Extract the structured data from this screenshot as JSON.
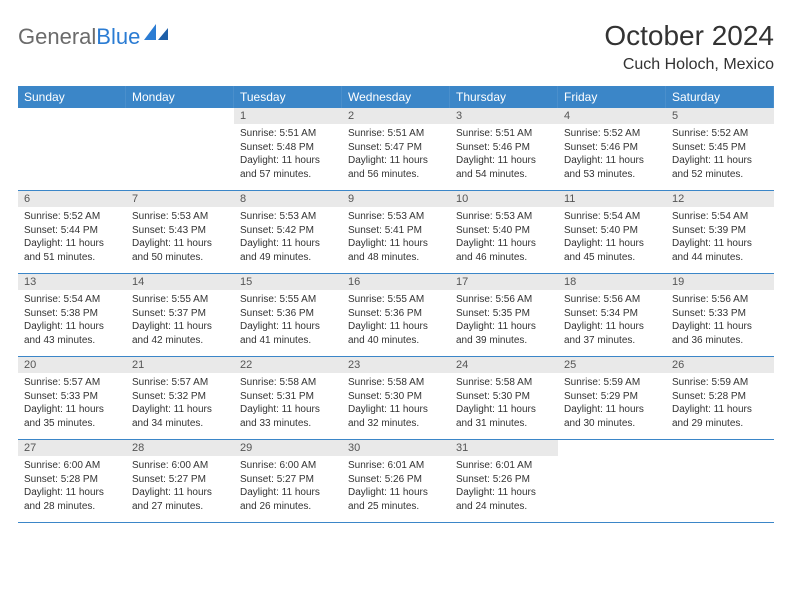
{
  "logo": {
    "text1": "General",
    "text2": "Blue"
  },
  "title": "October 2024",
  "location": "Cuch Holoch, Mexico",
  "colors": {
    "header_bg": "#3b86c8",
    "header_text": "#ffffff",
    "daynum_bg": "#e9e9e9",
    "daynum_text": "#555555",
    "border": "#3b86c8",
    "body_text": "#333333",
    "logo_gray": "#6b6b6b",
    "logo_blue": "#2b7cd3"
  },
  "day_names": [
    "Sunday",
    "Monday",
    "Tuesday",
    "Wednesday",
    "Thursday",
    "Friday",
    "Saturday"
  ],
  "weeks": [
    [
      {
        "empty": true
      },
      {
        "empty": true
      },
      {
        "num": "1",
        "sunrise": "Sunrise: 5:51 AM",
        "sunset": "Sunset: 5:48 PM",
        "d1": "Daylight: 11 hours",
        "d2": "and 57 minutes."
      },
      {
        "num": "2",
        "sunrise": "Sunrise: 5:51 AM",
        "sunset": "Sunset: 5:47 PM",
        "d1": "Daylight: 11 hours",
        "d2": "and 56 minutes."
      },
      {
        "num": "3",
        "sunrise": "Sunrise: 5:51 AM",
        "sunset": "Sunset: 5:46 PM",
        "d1": "Daylight: 11 hours",
        "d2": "and 54 minutes."
      },
      {
        "num": "4",
        "sunrise": "Sunrise: 5:52 AM",
        "sunset": "Sunset: 5:46 PM",
        "d1": "Daylight: 11 hours",
        "d2": "and 53 minutes."
      },
      {
        "num": "5",
        "sunrise": "Sunrise: 5:52 AM",
        "sunset": "Sunset: 5:45 PM",
        "d1": "Daylight: 11 hours",
        "d2": "and 52 minutes."
      }
    ],
    [
      {
        "num": "6",
        "sunrise": "Sunrise: 5:52 AM",
        "sunset": "Sunset: 5:44 PM",
        "d1": "Daylight: 11 hours",
        "d2": "and 51 minutes."
      },
      {
        "num": "7",
        "sunrise": "Sunrise: 5:53 AM",
        "sunset": "Sunset: 5:43 PM",
        "d1": "Daylight: 11 hours",
        "d2": "and 50 minutes."
      },
      {
        "num": "8",
        "sunrise": "Sunrise: 5:53 AM",
        "sunset": "Sunset: 5:42 PM",
        "d1": "Daylight: 11 hours",
        "d2": "and 49 minutes."
      },
      {
        "num": "9",
        "sunrise": "Sunrise: 5:53 AM",
        "sunset": "Sunset: 5:41 PM",
        "d1": "Daylight: 11 hours",
        "d2": "and 48 minutes."
      },
      {
        "num": "10",
        "sunrise": "Sunrise: 5:53 AM",
        "sunset": "Sunset: 5:40 PM",
        "d1": "Daylight: 11 hours",
        "d2": "and 46 minutes."
      },
      {
        "num": "11",
        "sunrise": "Sunrise: 5:54 AM",
        "sunset": "Sunset: 5:40 PM",
        "d1": "Daylight: 11 hours",
        "d2": "and 45 minutes."
      },
      {
        "num": "12",
        "sunrise": "Sunrise: 5:54 AM",
        "sunset": "Sunset: 5:39 PM",
        "d1": "Daylight: 11 hours",
        "d2": "and 44 minutes."
      }
    ],
    [
      {
        "num": "13",
        "sunrise": "Sunrise: 5:54 AM",
        "sunset": "Sunset: 5:38 PM",
        "d1": "Daylight: 11 hours",
        "d2": "and 43 minutes."
      },
      {
        "num": "14",
        "sunrise": "Sunrise: 5:55 AM",
        "sunset": "Sunset: 5:37 PM",
        "d1": "Daylight: 11 hours",
        "d2": "and 42 minutes."
      },
      {
        "num": "15",
        "sunrise": "Sunrise: 5:55 AM",
        "sunset": "Sunset: 5:36 PM",
        "d1": "Daylight: 11 hours",
        "d2": "and 41 minutes."
      },
      {
        "num": "16",
        "sunrise": "Sunrise: 5:55 AM",
        "sunset": "Sunset: 5:36 PM",
        "d1": "Daylight: 11 hours",
        "d2": "and 40 minutes."
      },
      {
        "num": "17",
        "sunrise": "Sunrise: 5:56 AM",
        "sunset": "Sunset: 5:35 PM",
        "d1": "Daylight: 11 hours",
        "d2": "and 39 minutes."
      },
      {
        "num": "18",
        "sunrise": "Sunrise: 5:56 AM",
        "sunset": "Sunset: 5:34 PM",
        "d1": "Daylight: 11 hours",
        "d2": "and 37 minutes."
      },
      {
        "num": "19",
        "sunrise": "Sunrise: 5:56 AM",
        "sunset": "Sunset: 5:33 PM",
        "d1": "Daylight: 11 hours",
        "d2": "and 36 minutes."
      }
    ],
    [
      {
        "num": "20",
        "sunrise": "Sunrise: 5:57 AM",
        "sunset": "Sunset: 5:33 PM",
        "d1": "Daylight: 11 hours",
        "d2": "and 35 minutes."
      },
      {
        "num": "21",
        "sunrise": "Sunrise: 5:57 AM",
        "sunset": "Sunset: 5:32 PM",
        "d1": "Daylight: 11 hours",
        "d2": "and 34 minutes."
      },
      {
        "num": "22",
        "sunrise": "Sunrise: 5:58 AM",
        "sunset": "Sunset: 5:31 PM",
        "d1": "Daylight: 11 hours",
        "d2": "and 33 minutes."
      },
      {
        "num": "23",
        "sunrise": "Sunrise: 5:58 AM",
        "sunset": "Sunset: 5:30 PM",
        "d1": "Daylight: 11 hours",
        "d2": "and 32 minutes."
      },
      {
        "num": "24",
        "sunrise": "Sunrise: 5:58 AM",
        "sunset": "Sunset: 5:30 PM",
        "d1": "Daylight: 11 hours",
        "d2": "and 31 minutes."
      },
      {
        "num": "25",
        "sunrise": "Sunrise: 5:59 AM",
        "sunset": "Sunset: 5:29 PM",
        "d1": "Daylight: 11 hours",
        "d2": "and 30 minutes."
      },
      {
        "num": "26",
        "sunrise": "Sunrise: 5:59 AM",
        "sunset": "Sunset: 5:28 PM",
        "d1": "Daylight: 11 hours",
        "d2": "and 29 minutes."
      }
    ],
    [
      {
        "num": "27",
        "sunrise": "Sunrise: 6:00 AM",
        "sunset": "Sunset: 5:28 PM",
        "d1": "Daylight: 11 hours",
        "d2": "and 28 minutes."
      },
      {
        "num": "28",
        "sunrise": "Sunrise: 6:00 AM",
        "sunset": "Sunset: 5:27 PM",
        "d1": "Daylight: 11 hours",
        "d2": "and 27 minutes."
      },
      {
        "num": "29",
        "sunrise": "Sunrise: 6:00 AM",
        "sunset": "Sunset: 5:27 PM",
        "d1": "Daylight: 11 hours",
        "d2": "and 26 minutes."
      },
      {
        "num": "30",
        "sunrise": "Sunrise: 6:01 AM",
        "sunset": "Sunset: 5:26 PM",
        "d1": "Daylight: 11 hours",
        "d2": "and 25 minutes."
      },
      {
        "num": "31",
        "sunrise": "Sunrise: 6:01 AM",
        "sunset": "Sunset: 5:26 PM",
        "d1": "Daylight: 11 hours",
        "d2": "and 24 minutes."
      },
      {
        "empty": true
      },
      {
        "empty": true
      }
    ]
  ]
}
